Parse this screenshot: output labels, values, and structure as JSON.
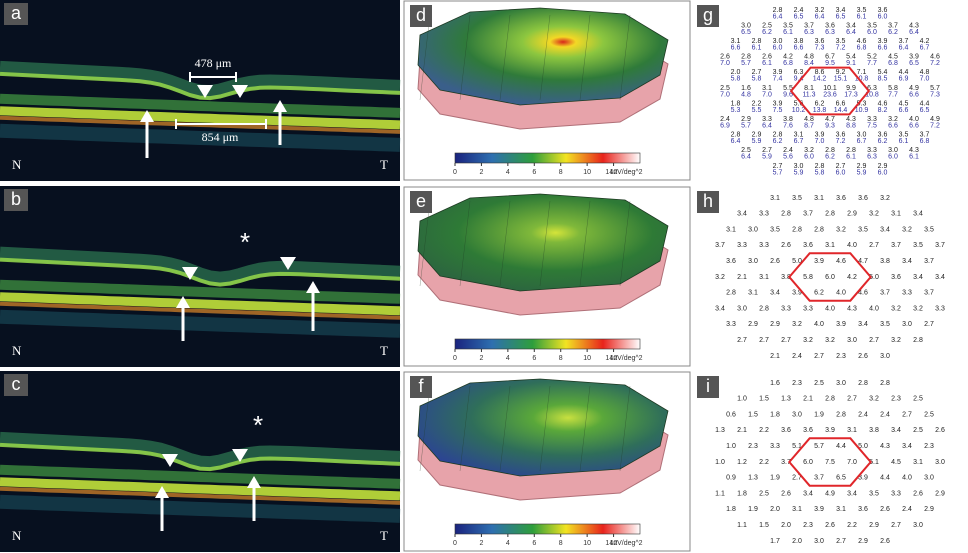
{
  "oct": [
    {
      "label": "a",
      "nasal": "N",
      "temporal": "T",
      "measurements": [
        "478 μm",
        "854 μm"
      ]
    },
    {
      "label": "b",
      "nasal": "N",
      "temporal": "T",
      "asterisk": "*"
    },
    {
      "label": "c",
      "nasal": "N",
      "temporal": "T",
      "asterisk": "*"
    }
  ],
  "topography": [
    {
      "label": "d",
      "colorbar_ticks": [
        0,
        2,
        4,
        6,
        8,
        10,
        12
      ],
      "colorbar_unit": "14nV/deg^2"
    },
    {
      "label": "e",
      "colorbar_ticks": [
        0,
        2,
        4,
        6,
        8,
        10,
        12
      ],
      "colorbar_unit": "14nV/deg^2"
    },
    {
      "label": "f",
      "colorbar_ticks": [
        0,
        2,
        4,
        6,
        8,
        10,
        12
      ],
      "colorbar_unit": "14nV/deg^2"
    }
  ],
  "maps": [
    {
      "label": "g",
      "rows": [
        [
          "2.8",
          "2.4",
          "3.2",
          "3.4",
          "3.5",
          "3.6"
        ],
        [
          "3.0",
          "2.5",
          "3.5",
          "3.7",
          "3.6",
          "3.4",
          "3.5",
          "3.7",
          "4.3"
        ],
        [
          "3.1",
          "2.8",
          "3.0",
          "3.8",
          "3.6",
          "3.5",
          "4.6",
          "3.9",
          "3.7",
          "4.2"
        ],
        [
          "2.6",
          "2.8",
          "2.6",
          "4.2",
          "4.8",
          "6.7",
          "5.4",
          "5.2",
          "4.5",
          "3.9",
          "4.6"
        ],
        [
          "2.0",
          "2.7",
          "3.9",
          "6.3",
          "8.6",
          "9.2",
          "7.1",
          "5.4",
          "4.4",
          "4.8"
        ],
        [
          "2.5",
          "1.6",
          "3.1",
          "5.5",
          "8.1",
          "10.1",
          "9.9",
          "6.3",
          "5.8",
          "4.9",
          "5.7"
        ],
        [
          "1.8",
          "2.2",
          "3.9",
          "5.6",
          "6.2",
          "6.6",
          "5.3",
          "4.6",
          "4.5",
          "4.4"
        ],
        [
          "2.4",
          "2.9",
          "3.3",
          "3.8",
          "4.8",
          "4.7",
          "4.3",
          "3.3",
          "3.2",
          "4.0",
          "4.9"
        ],
        [
          "2.8",
          "2.9",
          "2.8",
          "3.1",
          "3.9",
          "3.6",
          "3.0",
          "3.6",
          "3.5",
          "3.7"
        ],
        [
          "2.5",
          "2.7",
          "2.4",
          "3.2",
          "2.8",
          "2.8",
          "3.3",
          "3.0",
          "4.3"
        ],
        [
          "2.7",
          "3.0",
          "2.8",
          "2.7",
          "2.9",
          "2.9"
        ]
      ],
      "rows_bottom": [
        [
          "6.4",
          "6.5",
          "6.4",
          "6.5",
          "6.1",
          "6.0"
        ],
        [
          "6.5",
          "6.2",
          "6.1",
          "6.3",
          "6.3",
          "6.4",
          "6.0",
          "6.2",
          "6.4"
        ],
        [
          "6.6",
          "6.1",
          "6.0",
          "6.6",
          "7.3",
          "7.2",
          "6.8",
          "6.6",
          "6.4",
          "6.7"
        ],
        [
          "7.0",
          "5.7",
          "6.1",
          "6.8",
          "8.4",
          "9.5",
          "9.1",
          "7.7",
          "6.8",
          "6.5",
          "7.2"
        ],
        [
          "5.8",
          "5.8",
          "7.4",
          "9.4",
          "14.2",
          "15.1",
          "10.8",
          "8.5",
          "6.9",
          "7.0"
        ],
        [
          "7.0",
          "4.8",
          "7.0",
          "9.6",
          "11.3",
          "23.6",
          "17.3",
          "10.8",
          "7.7",
          "6.6",
          "7.3"
        ],
        [
          "5.3",
          "5.5",
          "7.5",
          "10.2",
          "13.8",
          "14.4",
          "10.9",
          "8.2",
          "6.6",
          "6.5"
        ],
        [
          "6.9",
          "5.7",
          "6.4",
          "7.6",
          "8.7",
          "9.3",
          "8.8",
          "7.5",
          "6.6",
          "6.6",
          "7.2"
        ],
        [
          "6.4",
          "5.9",
          "6.2",
          "6.7",
          "7.0",
          "7.2",
          "6.7",
          "6.2",
          "6.1",
          "6.8"
        ],
        [
          "6.4",
          "5.9",
          "5.6",
          "6.0",
          "6.2",
          "6.1",
          "6.3",
          "6.0",
          "6.1"
        ],
        [
          "5.7",
          "5.9",
          "5.8",
          "6.0",
          "5.9",
          "6.0"
        ]
      ]
    },
    {
      "label": "h",
      "rows": [
        [
          "3.1",
          "3.5",
          "3.1",
          "3.6",
          "3.6",
          "3.2"
        ],
        [
          "3.4",
          "3.3",
          "2.8",
          "3.7",
          "2.8",
          "2.9",
          "3.2",
          "3.1",
          "3.4"
        ],
        [
          "3.1",
          "3.0",
          "3.5",
          "2.8",
          "2.8",
          "3.2",
          "3.5",
          "3.4",
          "3.2",
          "3.5"
        ],
        [
          "3.7",
          "3.3",
          "3.3",
          "2.6",
          "3.6",
          "3.1",
          "4.0",
          "2.7",
          "3.7",
          "3.5",
          "3.7"
        ],
        [
          "3.6",
          "3.0",
          "2.6",
          "5.0",
          "3.9",
          "4.6",
          "4.7",
          "3.8",
          "3.4",
          "3.7"
        ],
        [
          "3.2",
          "2.1",
          "3.1",
          "3.8",
          "5.8",
          "6.0",
          "4.2",
          "5.0",
          "3.6",
          "3.4",
          "3.4"
        ],
        [
          "2.8",
          "3.1",
          "3.4",
          "3.9",
          "6.2",
          "4.0",
          "4.6",
          "3.7",
          "3.3",
          "3.7"
        ],
        [
          "3.4",
          "3.0",
          "2.8",
          "3.3",
          "3.3",
          "4.0",
          "4.3",
          "4.0",
          "3.2",
          "3.2",
          "3.3"
        ],
        [
          "3.3",
          "2.9",
          "2.9",
          "3.2",
          "4.0",
          "3.9",
          "3.4",
          "3.5",
          "3.0",
          "2.7"
        ],
        [
          "2.7",
          "2.7",
          "2.7",
          "3.2",
          "3.2",
          "3.0",
          "2.7",
          "3.2",
          "2.8"
        ],
        [
          "2.1",
          "2.4",
          "2.7",
          "2.3",
          "2.6",
          "3.0"
        ]
      ]
    },
    {
      "label": "i",
      "rows": [
        [
          "1.6",
          "2.3",
          "2.5",
          "3.0",
          "2.8",
          "2.8"
        ],
        [
          "1.0",
          "1.5",
          "1.3",
          "2.1",
          "2.8",
          "2.7",
          "3.2",
          "2.3",
          "2.5"
        ],
        [
          "0.6",
          "1.5",
          "1.8",
          "3.0",
          "1.9",
          "2.8",
          "2.4",
          "2.4",
          "2.7",
          "2.5"
        ],
        [
          "1.3",
          "2.1",
          "2.2",
          "3.6",
          "3.6",
          "3.9",
          "3.1",
          "3.8",
          "3.4",
          "2.5",
          "2.6"
        ],
        [
          "1.0",
          "2.3",
          "3.3",
          "5.1",
          "5.7",
          "4.4",
          "5.0",
          "4.3",
          "3.4",
          "2.3"
        ],
        [
          "1.0",
          "1.2",
          "2.2",
          "3.7",
          "6.0",
          "7.5",
          "7.0",
          "5.1",
          "4.5",
          "3.1",
          "3.0"
        ],
        [
          "0.9",
          "1.3",
          "1.9",
          "2.7",
          "3.7",
          "6.5",
          "3.9",
          "4.4",
          "4.0",
          "3.0"
        ],
        [
          "1.1",
          "1.8",
          "2.5",
          "2.6",
          "3.4",
          "4.9",
          "3.4",
          "3.5",
          "3.3",
          "2.6",
          "2.9"
        ],
        [
          "1.8",
          "1.9",
          "2.0",
          "3.1",
          "3.9",
          "3.1",
          "3.6",
          "2.6",
          "2.4",
          "2.9"
        ],
        [
          "1.1",
          "1.5",
          "2.0",
          "2.3",
          "2.6",
          "2.2",
          "2.9",
          "2.7",
          "3.0"
        ],
        [
          "1.7",
          "2.0",
          "3.0",
          "2.7",
          "2.9",
          "2.6"
        ]
      ]
    }
  ]
}
